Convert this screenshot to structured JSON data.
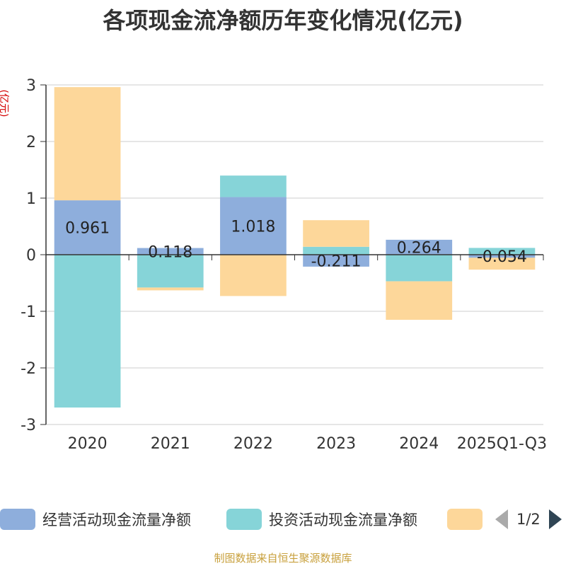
{
  "title": "各项现金流净额历年变化情况(亿元)",
  "unit_label": "(亿元)",
  "source_text": "制图数据来自恒生聚源数据库",
  "legend": {
    "items": [
      {
        "label": "经营活动现金流量净额",
        "color": "#8eaedc"
      },
      {
        "label": "投资活动现金流量净额",
        "color": "#86d4d8"
      },
      {
        "label": "",
        "color": "#fdd79a"
      }
    ],
    "page": "1/2"
  },
  "chart_data": {
    "type": "bar",
    "stacked": true,
    "categories": [
      "2020",
      "2021",
      "2022",
      "2023",
      "2024",
      "2025Q1-Q3"
    ],
    "ylim": [
      -3,
      3
    ],
    "yticks": [
      "-3",
      "-2",
      "-1",
      "0",
      "1",
      "2",
      "3"
    ],
    "series": [
      {
        "name": "经营活动现金流量净额",
        "color": "#8eaedc",
        "values": [
          0.961,
          0.118,
          1.018,
          -0.211,
          0.264,
          -0.054
        ]
      },
      {
        "name": "投资活动现金流量净额",
        "color": "#86d4d8",
        "values": [
          -2.7,
          -0.58,
          0.38,
          0.14,
          -0.47,
          0.12
        ]
      },
      {
        "name": "",
        "color": "#fdd79a",
        "values": [
          2.0,
          -0.05,
          -0.73,
          0.47,
          -0.68,
          -0.21
        ]
      }
    ],
    "data_labels": [
      "0.961",
      "0.118",
      "1.018",
      "-0.211",
      "0.264",
      "-0.054"
    ]
  }
}
